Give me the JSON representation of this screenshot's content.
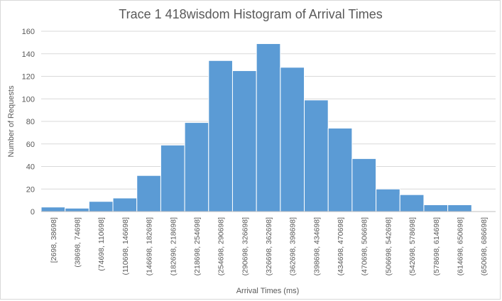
{
  "chart_data": {
    "type": "bar",
    "title": "Trace 1 418wisdom Histogram of Arrival Times",
    "xlabel": "Arrival Times (ms)",
    "ylabel": "Number of Requests",
    "ylim": [
      0,
      160
    ],
    "yticks": [
      0,
      20,
      40,
      60,
      80,
      100,
      120,
      140,
      160
    ],
    "grid": true,
    "bar_color": "#5b9bd5",
    "categories": [
      "[2698, 38698]",
      "(38698, 74698]",
      "(74698, 110698]",
      "(110698, 146698]",
      "(146698, 182698]",
      "(182698, 218698]",
      "(218698, 254698]",
      "(254698, 290698]",
      "(290698, 326698]",
      "(326698, 362698]",
      "(362698, 398698]",
      "(398698, 434698]",
      "(434698, 470698]",
      "(470698, 506698]",
      "(506698, 542698]",
      "(542698, 578698]",
      "(578698, 614698]",
      "(614698, 650698]",
      "(650698, 686698]"
    ],
    "values": [
      4,
      3,
      9,
      12,
      32,
      59,
      79,
      134,
      125,
      149,
      128,
      99,
      74,
      47,
      20,
      15,
      6,
      6,
      0
    ]
  }
}
